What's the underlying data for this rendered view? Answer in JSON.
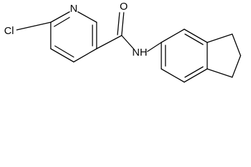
{
  "atoms": {
    "chlorine": "Cl",
    "pyridine_nitrogen": "N",
    "oxygen": "O",
    "amide_nitrogen": "NH"
  }
}
